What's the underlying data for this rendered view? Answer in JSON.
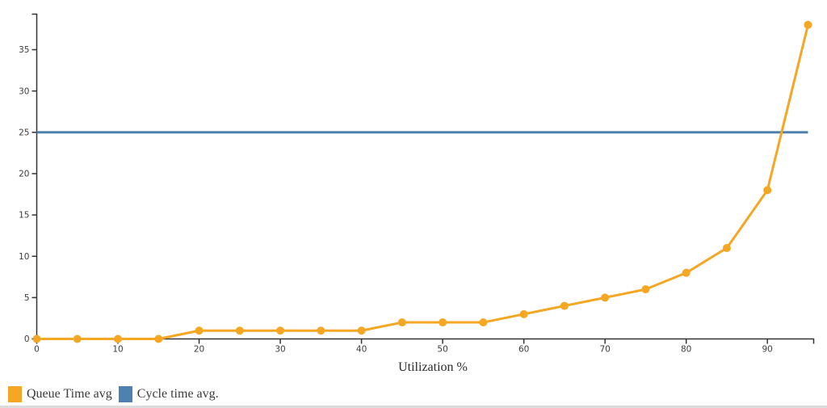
{
  "chart_data": {
    "type": "line",
    "title": "",
    "xlabel": "Utilization %",
    "ylabel": "",
    "x": [
      0,
      5,
      10,
      15,
      20,
      25,
      30,
      35,
      40,
      45,
      50,
      55,
      60,
      65,
      70,
      75,
      80,
      85,
      90,
      95
    ],
    "series": [
      {
        "name": "Queue Time avg",
        "color": "#F5A623",
        "marker": "circle",
        "marker_radius": 5,
        "line_width": 3,
        "z": 1,
        "values": [
          0,
          0,
          0,
          0,
          1,
          1,
          1,
          1,
          1,
          2,
          2,
          2,
          3,
          4,
          5,
          6,
          8,
          11,
          18,
          38
        ]
      },
      {
        "name": "Cycle time avg.",
        "color": "#4E80B0",
        "marker": "none",
        "marker_radius": 0,
        "line_width": 3,
        "z": 0,
        "values": [
          25,
          25,
          25,
          25,
          25,
          25,
          25,
          25,
          25,
          25,
          25,
          25,
          25,
          25,
          25,
          25,
          25,
          25,
          25,
          25
        ]
      }
    ],
    "xlim": [
      0,
      95.7
    ],
    "ylim": [
      0,
      39.3
    ],
    "x_ticks": [
      0,
      10,
      20,
      30,
      40,
      50,
      60,
      70,
      80,
      90
    ],
    "y_ticks": [
      0,
      5,
      10,
      15,
      20,
      25,
      30,
      35
    ],
    "grid": false,
    "legend_position": "bottom-left",
    "axis_color": "#333333",
    "tick_label_color": "#3d3d3d"
  },
  "legend": {
    "items": [
      {
        "label": "Queue Time avg",
        "color": "#F5A623"
      },
      {
        "label": "Cycle time avg.",
        "color": "#4E80B0"
      }
    ]
  }
}
